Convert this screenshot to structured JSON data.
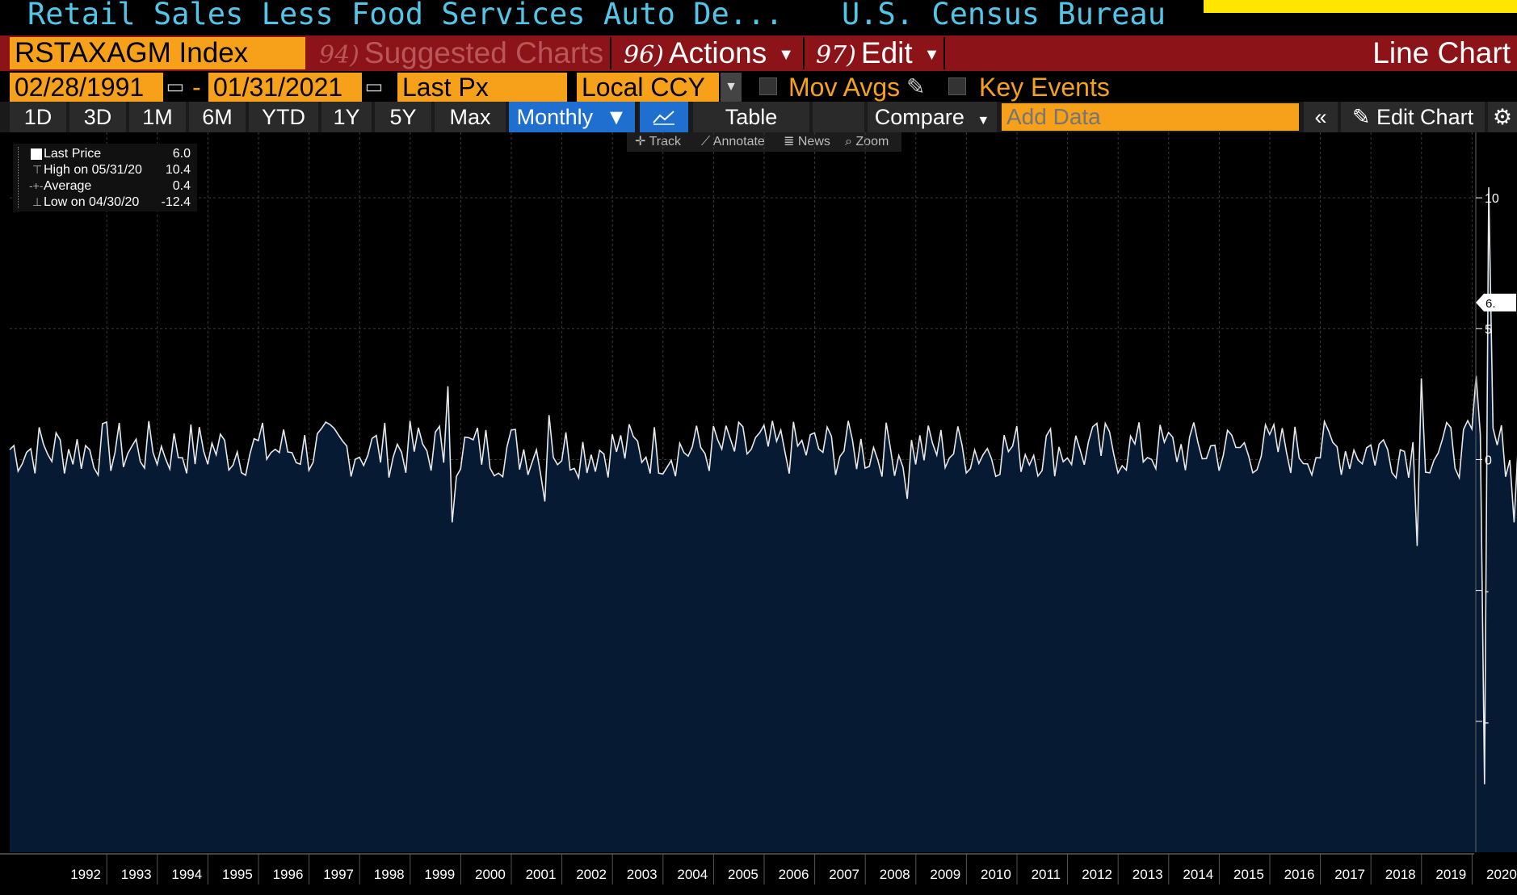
{
  "header": {
    "title": "Retail Sales Less Food Services Auto De...",
    "source": "U.S. Census Bureau"
  },
  "menubar": {
    "ticker": "RSTAXAGM Index",
    "suggested": {
      "num": "94)",
      "label": "Suggested Charts"
    },
    "actions": {
      "num": "96)",
      "label": "Actions"
    },
    "edit": {
      "num": "97)",
      "label": "Edit"
    },
    "chart_type": "Line Chart"
  },
  "controls": {
    "start_date": "02/28/1991",
    "date_sep": "-",
    "end_date": "01/31/2021",
    "field": "Last Px",
    "currency": "Local CCY",
    "mov_avgs": "Mov Avgs",
    "key_events": "Key Events"
  },
  "ranges": [
    "1D",
    "3D",
    "1M",
    "6M",
    "YTD",
    "1Y",
    "5Y",
    "Max"
  ],
  "toolbar": {
    "frequency": "Monthly",
    "table": "Table",
    "compare": "Compare",
    "add_data_placeholder": "Add Data",
    "edit_chart": "Edit Chart"
  },
  "subtools": {
    "track": "Track",
    "annotate": "Annotate",
    "news": "News",
    "zoom": "Zoom"
  },
  "legend": {
    "last_label": "Last Price",
    "last_value": "6.0",
    "high_label": "High on 05/31/20",
    "high_value": "10.4",
    "avg_label": "Average",
    "avg_value": "0.4",
    "low_label": "Low on 04/30/20",
    "low_value": "-12.4"
  },
  "colors": {
    "line": "#e8e8e8",
    "fill": "#061a33",
    "accent": "#f7a11a",
    "menubar": "#8c1419"
  },
  "chart_data": {
    "type": "area",
    "ylim": [
      -15,
      12.5
    ],
    "y_ticks": [
      "10",
      "5",
      "0"
    ],
    "last_value_tag": "6.",
    "x_ticks": [
      "1992",
      "1993",
      "1994",
      "1995",
      "1996",
      "1997",
      "1998",
      "1999",
      "2000",
      "2001",
      "2002",
      "2003",
      "2004",
      "2005",
      "2006",
      "2007",
      "2008",
      "2009",
      "2010",
      "2011",
      "2012",
      "2013",
      "2014",
      "2015",
      "2016",
      "2017",
      "2018",
      "2019",
      "2020"
    ],
    "events": [
      {
        "date": "1999-10",
        "value": 2.8
      },
      {
        "date": "1999-11",
        "value": -2.4
      },
      {
        "date": "2001-09",
        "value": -1.6
      },
      {
        "date": "2001-10",
        "value": 1.7
      },
      {
        "date": "2008-11",
        "value": -1.5
      },
      {
        "date": "2018-12",
        "value": -3.3
      },
      {
        "date": "2019-01",
        "value": 3.1
      },
      {
        "date": "2020-02",
        "value": 3.2
      },
      {
        "date": "2020-04",
        "value": -12.4
      },
      {
        "date": "2020-05",
        "value": 10.4
      },
      {
        "date": "2020-06",
        "value": 1.2
      },
      {
        "date": "2020-11",
        "value": -2.4
      },
      {
        "date": "2021-01",
        "value": 6.0
      }
    ],
    "grid": true
  }
}
